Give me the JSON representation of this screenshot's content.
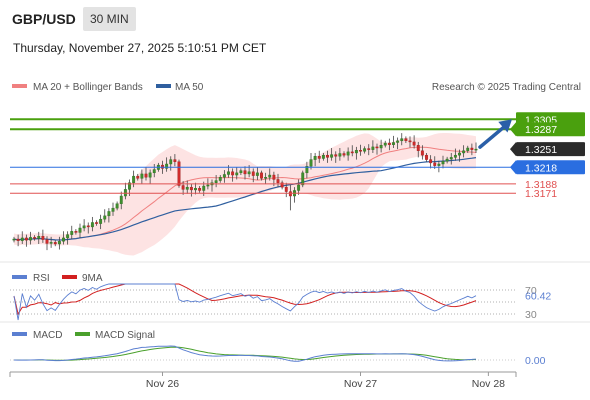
{
  "header": {
    "symbol": "GBP/USD",
    "timeframe": "30 MIN",
    "timestamp": "Thursday, November 27, 2025 5:10:51 PM CET"
  },
  "legend": {
    "main": [
      {
        "label": "MA 20 + Bollinger Bands",
        "color": "#f08080"
      },
      {
        "label": "MA 50",
        "color": "#2f5f9f"
      }
    ],
    "rsi": [
      {
        "label": "RSI",
        "color": "#5b7fd1"
      },
      {
        "label": "9MA",
        "color": "#d22020"
      }
    ],
    "macd": [
      {
        "label": "MACD",
        "color": "#5b7fd1"
      },
      {
        "label": "MACD Signal",
        "color": "#4aa02c"
      }
    ]
  },
  "credit": "Research © 2025 Trading Central",
  "chart_data": {
    "type": "candlestick",
    "price_ylim": [
      1.305,
      1.334
    ],
    "levels": [
      {
        "value": 1.3305,
        "label": "1.3305",
        "kind": "target",
        "color": "#4aa00e"
      },
      {
        "value": 1.3287,
        "label": "1.3287",
        "kind": "resistance",
        "color": "#4aa00e"
      },
      {
        "value": 1.3251,
        "label": "1.3251",
        "kind": "last",
        "color": "#2b2b2b"
      },
      {
        "value": 1.3218,
        "label": "1.3218",
        "kind": "pivot",
        "color": "#2a6ee0"
      },
      {
        "value": 1.3188,
        "label": "1.3188",
        "kind": "support",
        "color": "#e05050"
      },
      {
        "value": 1.3171,
        "label": "1.3171",
        "kind": "support",
        "color": "#e05050"
      }
    ],
    "x_labels": [
      "Nov 26",
      "Nov 27",
      "Nov 28"
    ],
    "x_label_bars": [
      36,
      84,
      115
    ],
    "closes": [
      1.3088,
      1.3085,
      1.309,
      1.3086,
      1.3091,
      1.3089,
      1.3093,
      1.3087,
      1.308,
      1.3082,
      1.3079,
      1.3084,
      1.309,
      1.3096,
      1.3102,
      1.31,
      1.3108,
      1.3112,
      1.311,
      1.3118,
      1.3116,
      1.3124,
      1.313,
      1.3138,
      1.3144,
      1.3152,
      1.3166,
      1.3178,
      1.319,
      1.3202,
      1.3198,
      1.3206,
      1.32,
      1.3208,
      1.3214,
      1.3222,
      1.3216,
      1.3224,
      1.3232,
      1.3228,
      1.3185,
      1.3178,
      1.3182,
      1.3177,
      1.318,
      1.3176,
      1.3184,
      1.3186,
      1.319,
      1.3194,
      1.32,
      1.3205,
      1.321,
      1.3204,
      1.3208,
      1.3212,
      1.3206,
      1.321,
      1.3203,
      1.3208,
      1.3198,
      1.32,
      1.3204,
      1.3196,
      1.319,
      1.3182,
      1.3174,
      1.3166,
      1.3176,
      1.3186,
      1.3208,
      1.322,
      1.3232,
      1.3238,
      1.3234,
      1.324,
      1.3236,
      1.3241,
      1.3238,
      1.3243,
      1.324,
      1.3246,
      1.3244,
      1.3249,
      1.3247,
      1.3252,
      1.325,
      1.3255,
      1.3253,
      1.3258,
      1.3262,
      1.3259,
      1.3263,
      1.3266,
      1.327,
      1.3266,
      1.3264,
      1.3258,
      1.3248,
      1.324,
      1.3232,
      1.3226,
      1.3221,
      1.3224,
      1.3229,
      1.3233,
      1.3236,
      1.324,
      1.3244,
      1.3248,
      1.3253,
      1.325,
      1.3251
    ],
    "forecast_target": 1.3305,
    "rsi": {
      "ylim": [
        20,
        80
      ],
      "levels": [
        70,
        50,
        30
      ],
      "last": 60.42,
      "last_label": "60.42",
      "level_labels": [
        "70",
        "30"
      ]
    },
    "macd": {
      "last": 0.0,
      "last_label": "0.00"
    }
  }
}
